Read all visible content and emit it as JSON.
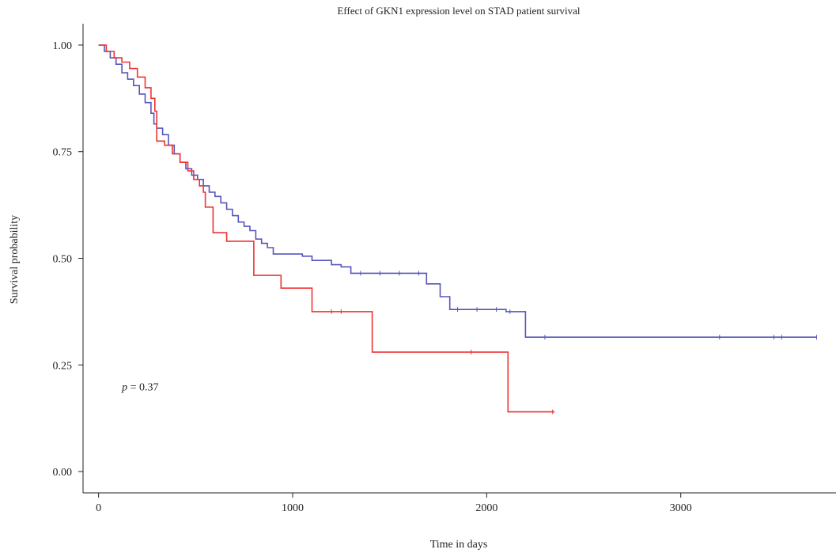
{
  "chart_data": {
    "type": "line",
    "subtype": "kaplan-meier-step",
    "title": "Effect of GKN1 expression level on STAD patient survival",
    "xlabel": "Time in days",
    "ylabel": "Survival probability",
    "xlim": [
      -80,
      3800
    ],
    "ylim": [
      -0.05,
      1.05
    ],
    "xticks": [
      {
        "value": 0,
        "label": "0"
      },
      {
        "value": 1000,
        "label": "1000"
      },
      {
        "value": 2000,
        "label": "2000"
      },
      {
        "value": 3000,
        "label": "3000"
      }
    ],
    "yticks": [
      {
        "value": 0.0,
        "label": "0.00"
      },
      {
        "value": 0.25,
        "label": "0.25"
      },
      {
        "value": 0.5,
        "label": "0.50"
      },
      {
        "value": 0.75,
        "label": "0.75"
      },
      {
        "value": 1.0,
        "label": "1.00"
      }
    ],
    "grid": false,
    "legend": "none",
    "annotation": {
      "p_symbol": "p",
      "p_text": " = 0.37",
      "x": 120,
      "y": 0.19
    },
    "series": [
      {
        "color": "#5555bb",
        "x": [
          0,
          30,
          60,
          90,
          120,
          150,
          180,
          210,
          240,
          270,
          285,
          300,
          330,
          360,
          390,
          420,
          450,
          480,
          510,
          540,
          570,
          600,
          630,
          660,
          690,
          720,
          750,
          780,
          810,
          840,
          870,
          900,
          950,
          1000,
          1050,
          1100,
          1150,
          1200,
          1250,
          1300,
          1400,
          1500,
          1600,
          1680,
          1690,
          1740,
          1760,
          1810,
          1900,
          2000,
          2100,
          2190,
          2200,
          2300,
          2600,
          3000,
          3400,
          3500,
          3700
        ],
        "y": [
          1.0,
          0.985,
          0.97,
          0.955,
          0.935,
          0.92,
          0.905,
          0.885,
          0.865,
          0.84,
          0.815,
          0.805,
          0.79,
          0.765,
          0.745,
          0.725,
          0.71,
          0.695,
          0.685,
          0.67,
          0.655,
          0.645,
          0.63,
          0.615,
          0.6,
          0.585,
          0.575,
          0.565,
          0.545,
          0.535,
          0.525,
          0.51,
          0.51,
          0.51,
          0.505,
          0.495,
          0.495,
          0.485,
          0.48,
          0.465,
          0.465,
          0.465,
          0.465,
          0.465,
          0.44,
          0.44,
          0.41,
          0.38,
          0.38,
          0.38,
          0.375,
          0.375,
          0.315,
          0.315,
          0.315,
          0.315,
          0.315,
          0.315,
          0.315
        ],
        "censored_x": [
          1350,
          1450,
          1550,
          1650,
          1850,
          1950,
          2050,
          2120,
          2300,
          3200,
          3480,
          3520,
          3700
        ]
      },
      {
        "color": "#ee3333",
        "x": [
          0,
          40,
          80,
          120,
          160,
          200,
          240,
          270,
          290,
          300,
          340,
          380,
          420,
          460,
          490,
          520,
          540,
          550,
          590,
          600,
          660,
          780,
          800,
          940,
          1100,
          1400,
          1410,
          1900,
          2100,
          2110,
          2350
        ],
        "y": [
          1.0,
          0.985,
          0.97,
          0.96,
          0.945,
          0.925,
          0.9,
          0.875,
          0.845,
          0.775,
          0.765,
          0.745,
          0.725,
          0.705,
          0.685,
          0.67,
          0.655,
          0.62,
          0.56,
          0.56,
          0.54,
          0.54,
          0.46,
          0.43,
          0.375,
          0.375,
          0.28,
          0.28,
          0.28,
          0.14,
          0.14
        ],
        "censored_x": [
          1200,
          1250,
          1920,
          2340
        ]
      }
    ]
  }
}
